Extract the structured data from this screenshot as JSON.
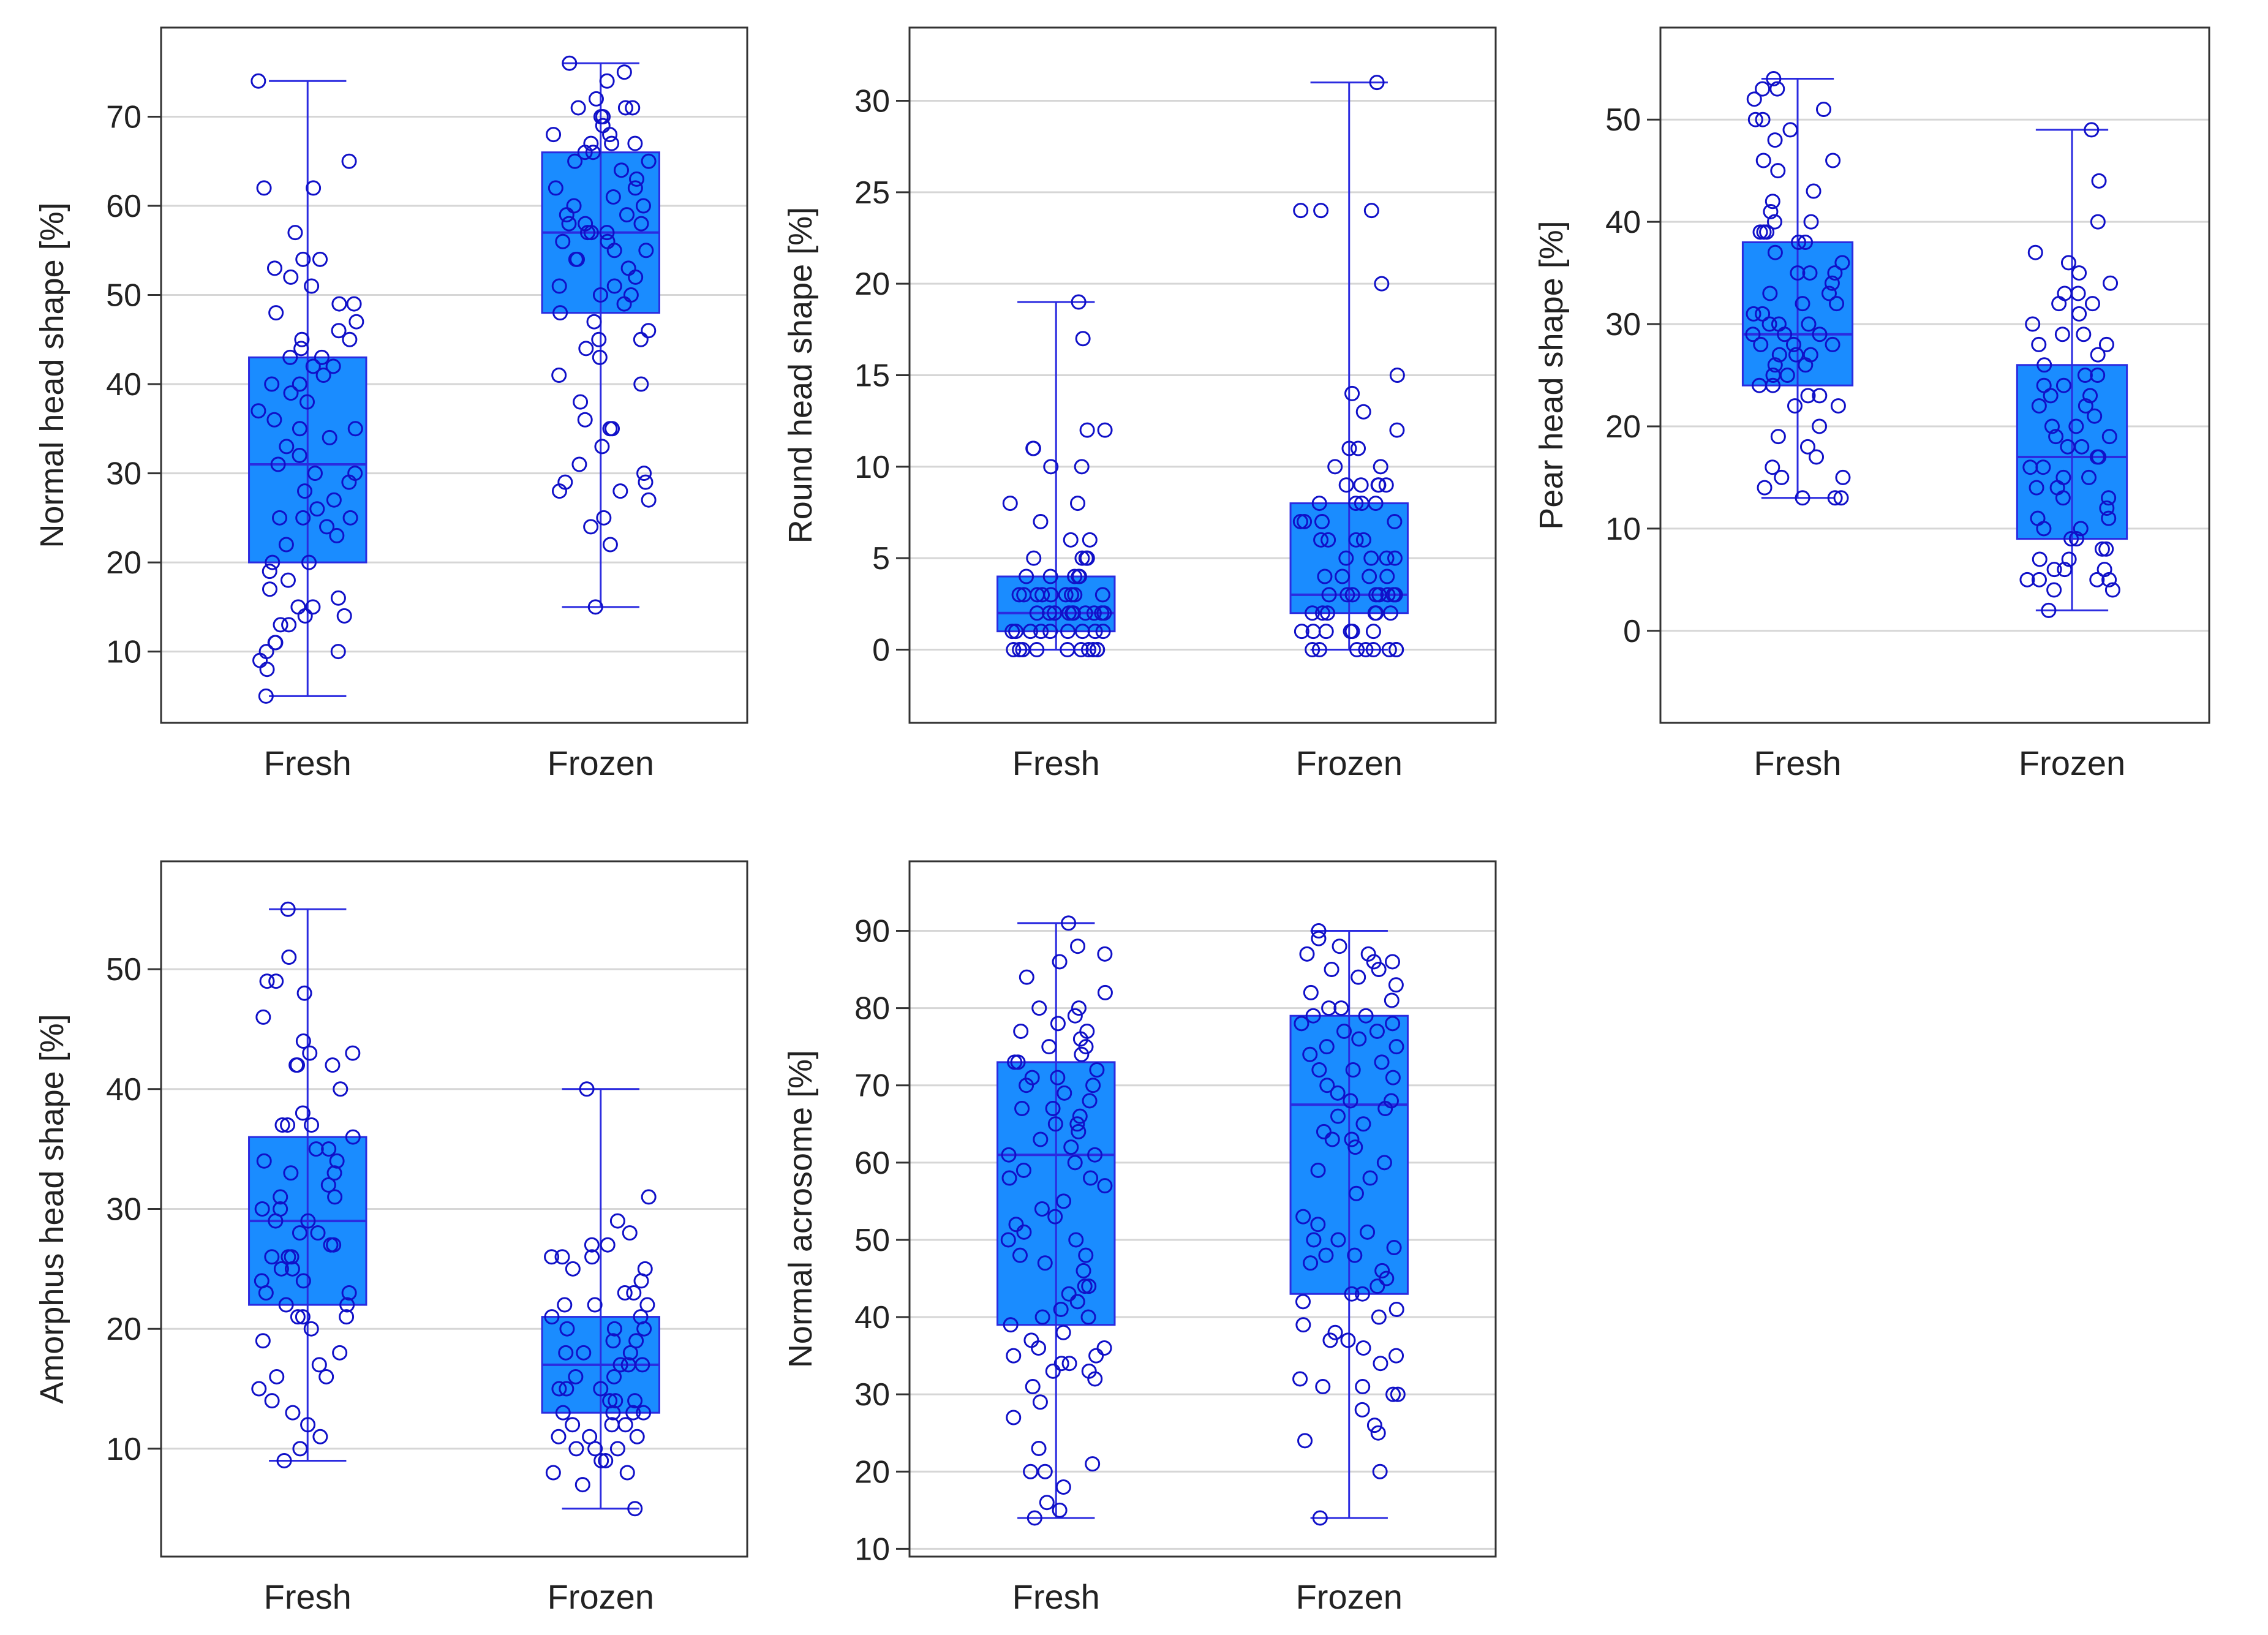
{
  "colors": {
    "box_fill": "#1a8cff",
    "whisker": "#2b2be0",
    "point_stroke": "#1010c8",
    "grid": "#d6d6d6",
    "frame": "#333333"
  },
  "chart_data": [
    {
      "type": "box",
      "ylabel": "Normal head shape [%]",
      "ylim": [
        2,
        80
      ],
      "yticks": [
        10,
        20,
        30,
        40,
        50,
        60,
        70
      ],
      "categories": [
        "Fresh",
        "Frozen"
      ],
      "boxes": [
        {
          "name": "Fresh",
          "min": 5,
          "q1": 20,
          "median": 31,
          "q3": 43,
          "max": 74,
          "points": [
            74,
            65,
            62,
            62,
            57,
            54,
            54,
            53,
            52,
            51,
            49,
            49,
            48,
            47,
            46,
            45,
            45,
            44,
            43,
            43,
            42,
            42,
            41,
            40,
            40,
            39,
            38,
            37,
            36,
            35,
            35,
            34,
            33,
            32,
            31,
            30,
            30,
            29,
            28,
            27,
            26,
            25,
            25,
            25,
            24,
            23,
            22,
            20,
            20,
            19,
            18,
            17,
            16,
            15,
            15,
            14,
            14,
            13,
            13,
            11,
            11,
            10,
            10,
            9,
            8,
            5
          ]
        },
        {
          "name": "Frozen",
          "min": 15,
          "q1": 48,
          "median": 57,
          "q3": 66,
          "max": 76,
          "points": [
            76,
            75,
            74,
            72,
            71,
            71,
            71,
            70,
            70,
            69,
            68,
            68,
            67,
            67,
            67,
            66,
            66,
            65,
            65,
            64,
            63,
            62,
            62,
            61,
            60,
            60,
            59,
            59,
            58,
            58,
            58,
            57,
            57,
            57,
            56,
            56,
            55,
            55,
            54,
            54,
            53,
            52,
            51,
            51,
            50,
            50,
            49,
            48,
            47,
            46,
            45,
            45,
            44,
            43,
            41,
            40,
            38,
            36,
            35,
            35,
            33,
            31,
            30,
            29,
            29,
            28,
            28,
            27,
            25,
            24,
            22,
            15
          ]
        }
      ]
    },
    {
      "type": "box",
      "ylabel": "Round head shape [%]",
      "ylim": [
        -4,
        34
      ],
      "yticks": [
        0,
        5,
        10,
        15,
        20,
        25,
        30
      ],
      "categories": [
        "Fresh",
        "Frozen"
      ],
      "boxes": [
        {
          "name": "Fresh",
          "min": 0,
          "q1": 1,
          "median": 2,
          "q3": 4,
          "max": 19,
          "points": [
            19,
            17,
            12,
            12,
            11,
            11,
            10,
            10,
            8,
            8,
            7,
            6,
            6,
            5,
            5,
            5,
            5,
            4,
            4,
            4,
            4,
            4,
            3,
            3,
            3,
            3,
            3,
            3,
            3,
            3,
            3,
            2,
            2,
            2,
            2,
            2,
            2,
            2,
            2,
            2,
            2,
            1,
            1,
            1,
            1,
            1,
            1,
            1,
            1,
            1,
            0,
            0,
            0,
            0,
            0,
            0,
            0,
            0,
            0,
            0
          ]
        },
        {
          "name": "Frozen",
          "min": 0,
          "q1": 2,
          "median": 3,
          "q3": 8,
          "max": 31,
          "points": [
            31,
            24,
            24,
            24,
            20,
            15,
            14,
            13,
            12,
            11,
            11,
            10,
            10,
            9,
            9,
            9,
            9,
            9,
            8,
            8,
            8,
            8,
            7,
            7,
            7,
            7,
            6,
            6,
            6,
            6,
            5,
            5,
            5,
            5,
            4,
            4,
            4,
            4,
            3,
            3,
            3,
            3,
            3,
            3,
            3,
            3,
            2,
            2,
            2,
            2,
            2,
            2,
            1,
            1,
            1,
            1,
            1,
            1,
            0,
            0,
            0,
            0,
            0,
            0,
            0,
            0
          ]
        }
      ]
    },
    {
      "type": "box",
      "ylabel": "Pear head shape [%]",
      "ylim": [
        -9,
        59
      ],
      "yticks": [
        0,
        10,
        20,
        30,
        40,
        50
      ],
      "categories": [
        "Fresh",
        "Frozen"
      ],
      "boxes": [
        {
          "name": "Fresh",
          "min": 13,
          "q1": 24,
          "median": 29,
          "q3": 38,
          "max": 54,
          "points": [
            54,
            53,
            53,
            52,
            51,
            50,
            50,
            49,
            48,
            46,
            46,
            45,
            43,
            42,
            41,
            40,
            40,
            39,
            39,
            39,
            38,
            38,
            37,
            36,
            35,
            35,
            35,
            34,
            33,
            33,
            32,
            32,
            31,
            31,
            30,
            30,
            30,
            29,
            29,
            29,
            28,
            28,
            28,
            27,
            27,
            27,
            26,
            26,
            25,
            25,
            24,
            24,
            23,
            23,
            22,
            22,
            20,
            19,
            18,
            17,
            16,
            15,
            15,
            14,
            13,
            13,
            13
          ]
        },
        {
          "name": "Frozen",
          "min": 2,
          "q1": 9,
          "median": 17,
          "q3": 26,
          "max": 49,
          "points": [
            49,
            44,
            40,
            37,
            36,
            35,
            34,
            33,
            33,
            32,
            32,
            31,
            30,
            29,
            29,
            28,
            28,
            27,
            26,
            25,
            25,
            24,
            24,
            23,
            23,
            22,
            22,
            21,
            20,
            20,
            19,
            19,
            18,
            18,
            17,
            17,
            16,
            16,
            15,
            15,
            14,
            14,
            13,
            13,
            12,
            11,
            11,
            10,
            10,
            9,
            9,
            8,
            8,
            7,
            7,
            6,
            6,
            6,
            5,
            5,
            5,
            5,
            4,
            4,
            2
          ]
        }
      ]
    },
    {
      "type": "box",
      "ylabel": "Amorphus head shape [%]",
      "ylim": [
        1,
        59
      ],
      "yticks": [
        10,
        20,
        30,
        40,
        50
      ],
      "categories": [
        "Fresh",
        "Frozen"
      ],
      "boxes": [
        {
          "name": "Fresh",
          "min": 9,
          "q1": 22,
          "median": 29,
          "q3": 36,
          "max": 55,
          "points": [
            55,
            51,
            49,
            49,
            48,
            46,
            44,
            43,
            43,
            42,
            42,
            42,
            40,
            38,
            37,
            37,
            37,
            36,
            35,
            35,
            34,
            34,
            33,
            33,
            32,
            31,
            31,
            30,
            30,
            29,
            29,
            28,
            28,
            27,
            27,
            26,
            26,
            26,
            25,
            25,
            24,
            24,
            23,
            23,
            22,
            22,
            21,
            21,
            21,
            20,
            19,
            18,
            17,
            16,
            16,
            15,
            14,
            13,
            12,
            11,
            10,
            9
          ]
        },
        {
          "name": "Frozen",
          "min": 5,
          "q1": 13,
          "median": 17,
          "q3": 21,
          "max": 40,
          "points": [
            40,
            31,
            29,
            28,
            27,
            27,
            26,
            26,
            26,
            25,
            25,
            24,
            23,
            23,
            22,
            22,
            22,
            21,
            21,
            20,
            20,
            20,
            19,
            19,
            18,
            18,
            18,
            17,
            17,
            17,
            16,
            16,
            15,
            15,
            15,
            14,
            14,
            14,
            13,
            13,
            13,
            13,
            12,
            12,
            12,
            11,
            11,
            11,
            10,
            10,
            10,
            9,
            9,
            8,
            8,
            7,
            5
          ]
        }
      ]
    },
    {
      "type": "box",
      "ylabel": "Normal acrosome [%]",
      "ylim": [
        9,
        99
      ],
      "yticks": [
        10,
        20,
        30,
        40,
        50,
        60,
        70,
        80,
        90
      ],
      "categories": [
        "Fresh",
        "Frozen"
      ],
      "boxes": [
        {
          "name": "Fresh",
          "min": 14,
          "q1": 39,
          "median": 61,
          "q3": 73,
          "max": 91,
          "points": [
            91,
            88,
            87,
            86,
            84,
            82,
            80,
            80,
            79,
            78,
            77,
            77,
            76,
            75,
            75,
            74,
            73,
            73,
            72,
            71,
            71,
            70,
            70,
            69,
            68,
            67,
            67,
            66,
            65,
            65,
            64,
            63,
            62,
            61,
            61,
            60,
            59,
            58,
            58,
            57,
            55,
            54,
            53,
            52,
            51,
            50,
            50,
            48,
            48,
            47,
            46,
            44,
            44,
            43,
            42,
            41,
            40,
            40,
            39,
            38,
            37,
            36,
            36,
            35,
            35,
            34,
            34,
            33,
            33,
            32,
            31,
            29,
            27,
            23,
            21,
            20,
            20,
            18,
            16,
            15,
            14
          ]
        },
        {
          "name": "Frozen",
          "min": 14,
          "q1": 43,
          "median": 67.5,
          "q3": 79,
          "max": 90,
          "points": [
            90,
            89,
            88,
            87,
            87,
            86,
            86,
            85,
            85,
            84,
            83,
            82,
            81,
            80,
            80,
            79,
            79,
            78,
            78,
            77,
            77,
            76,
            75,
            75,
            74,
            73,
            72,
            72,
            71,
            70,
            69,
            68,
            68,
            67,
            66,
            65,
            64,
            63,
            63,
            62,
            60,
            59,
            58,
            56,
            53,
            52,
            51,
            50,
            50,
            49,
            48,
            48,
            47,
            46,
            45,
            44,
            43,
            43,
            42,
            41,
            40,
            39,
            38,
            37,
            37,
            36,
            35,
            34,
            32,
            31,
            31,
            30,
            30,
            28,
            26,
            25,
            24,
            20,
            14
          ]
        }
      ]
    }
  ]
}
